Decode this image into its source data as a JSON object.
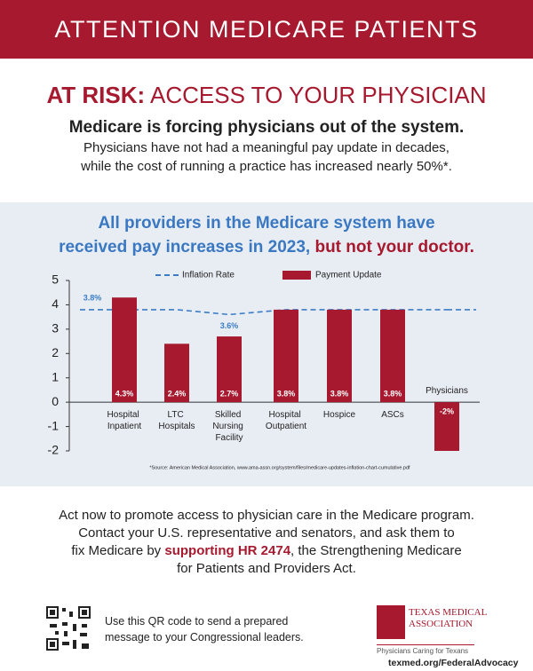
{
  "header": {
    "banner": "ATTENTION MEDICARE PATIENTS",
    "headline_lead": "AT RISK:",
    "headline": "ACCESS TO YOUR PHYSICIAN",
    "subhead": "Medicare is forcing physicians out of the system.",
    "body_lines": [
      "Physicians have not had a meaningful pay update in decades,",
      "while the cost of running a practice has increased nearly 50%*."
    ]
  },
  "chart_heading": {
    "line1": "All providers in the Medicare system have",
    "line2": "received pay increases in 2023,",
    "highlight": "but not your doctor."
  },
  "chart_data": {
    "type": "bar",
    "categories": [
      "Hospital Inpatient",
      "LTC Hospitals",
      "Skilled Nursing Facility",
      "Hospital Outpatient",
      "Hospice",
      "ASCs",
      "Physicians"
    ],
    "series": [
      {
        "name": "Inflation Rate",
        "type": "line",
        "color": "#3b7cc6",
        "dashed": true,
        "values": [
          3.8,
          3.8,
          3.6,
          3.8,
          3.8,
          3.8,
          3.8
        ],
        "value_labels": [
          "3.8%",
          null,
          "3.6%",
          null,
          null,
          null,
          null
        ]
      },
      {
        "name": "Payment Update",
        "type": "bar",
        "color": "#a6192e",
        "values": [
          4.3,
          2.4,
          2.7,
          3.8,
          3.8,
          3.8,
          -2
        ],
        "value_labels": [
          "4.3%",
          "2.4%",
          "2.7%",
          "3.8%",
          "3.8%",
          "3.8%",
          "-2%"
        ]
      }
    ],
    "ylim": [
      -2,
      5
    ],
    "yticks": [
      -2,
      -1,
      0,
      1,
      2,
      3,
      4,
      5
    ],
    "source": "*Source: American Medical Association, www.ama-assn.org/system/files/medicare-updates-inflation-chart-cumulative.pdf"
  },
  "cta": {
    "line1": "Act now to promote access to physician care in the Medicare program.",
    "line2": "Contact your U.S. representative and senators, and ask them to",
    "line3_lead": "fix Medicare by",
    "highlight": "supporting HR 2474",
    "line3_tail": ", the Strengthening Medicare",
    "line4": "for Patients and Providers Act."
  },
  "footer": {
    "qr_lines": [
      "Use this QR code to send a prepared",
      "message to your Congressional leaders."
    ],
    "logo_line1": "Texas Medical",
    "logo_line2": "Association",
    "tagline": "Physicians Caring for Texans",
    "url": "texmed.org/FederalAdvocacy"
  }
}
